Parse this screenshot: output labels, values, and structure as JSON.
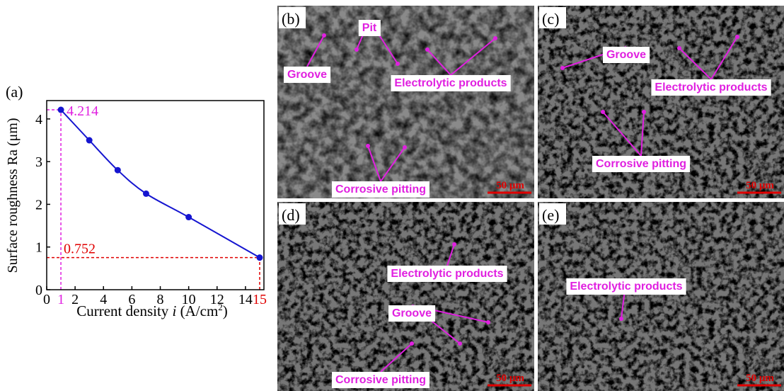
{
  "chart_data": {
    "type": "line",
    "panel_label": "(a)",
    "y_label": "Surface roughness Ra (μm)",
    "x_label": [
      "Current density ",
      "i",
      " (A/cm",
      "2",
      ")"
    ],
    "x": [
      1,
      3,
      5,
      7,
      10,
      15
    ],
    "series": [
      {
        "color": "#1515d0",
        "values": [
          4.214,
          3.5,
          2.8,
          2.25,
          1.7,
          0.752
        ]
      }
    ],
    "xlim": [
      0,
      15.3
    ],
    "ylim": [
      0,
      4.43
    ],
    "xticks": [
      0,
      2,
      4,
      6,
      8,
      10,
      12,
      14
    ],
    "yticks": [
      0,
      1,
      2,
      3,
      4
    ],
    "highlights": [
      {
        "x": 1,
        "y": 4.214,
        "color": "#e020e0"
      },
      {
        "x": 15,
        "y": 0.752,
        "color": "#e00000"
      }
    ]
  },
  "panels": [
    {
      "label": "(b)",
      "annotations": [
        "Pit",
        "Groove",
        "Electrolytic products",
        "Corrosive pitting"
      ],
      "scale_bar": "50 μm"
    },
    {
      "label": "(c)",
      "annotations": [
        "Groove",
        "Electrolytic products",
        "Corrosive pitting"
      ],
      "scale_bar": "50 μm"
    },
    {
      "label": "(d)",
      "annotations": [
        "Electrolytic products",
        "Groove",
        "Corrosive pitting"
      ],
      "scale_bar": "50 μm"
    },
    {
      "label": "(e)",
      "annotations": [
        "Electrolytic products"
      ],
      "scale_bar": "50 μm"
    }
  ]
}
